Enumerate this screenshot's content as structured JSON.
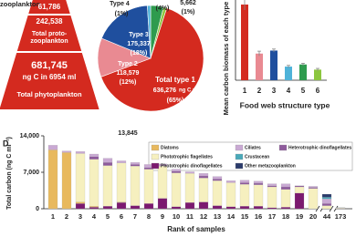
{
  "pyramid": {
    "heading": "zooplankton",
    "levels": [
      {
        "amount": "61,786"
      },
      {
        "amount": "242,538",
        "name": "Total proto-zooplankton"
      },
      {
        "amount": "681,745",
        "unit": "ng C in 6954 ml",
        "name": "Total phytoplankton"
      }
    ]
  },
  "chart_data": [
    {
      "type": "pie",
      "categories": [
        null,
        null,
        "Total type 1",
        "Type 2",
        "Type 3",
        "Type 4"
      ],
      "values": [
        4,
        1,
        65,
        12,
        18,
        1
      ],
      "value_labels": [
        "(4%)",
        "(1%)",
        "(65%)",
        "(12%)",
        "(18%)",
        "(1%)"
      ],
      "carbon": [
        null,
        5662,
        636276,
        118579,
        175337,
        13845
      ],
      "carbon_labels": [
        null,
        "5,662",
        "636,276",
        "118,579",
        "175,337",
        "13,845"
      ],
      "unit": "ng C ml⁻¹",
      "colors": [
        "#2e9b4e",
        "#8cc63f",
        "#d42a1f",
        "#e98a92",
        "#1f4f9e",
        "#4fb3d9"
      ]
    },
    {
      "type": "bar",
      "ylabel": "Mean carbon biomass of each type (ng C ml",
      "xlabel": "Food web structure type",
      "categories": [
        "1",
        "2",
        "3",
        "4",
        "5",
        "6"
      ],
      "values": [
        250,
        88,
        98,
        45,
        52,
        35
      ],
      "errors": [
        18,
        8,
        5,
        4,
        4,
        4
      ],
      "colors": [
        "#d42a1f",
        "#e98a92",
        "#1f4f9e",
        "#4fb3d9",
        "#2e9b4e",
        "#8cc63f"
      ],
      "ylim": [
        0,
        265
      ]
    },
    {
      "type": "stacked_bar",
      "panel_label": "D",
      "ylabel": "Total carbon (ng C ml⁻¹)",
      "xlabel": "Rank of samples",
      "categories": [
        "1",
        "2",
        "3",
        "4",
        "5",
        "6",
        "7",
        "8",
        "9",
        "10",
        "11",
        "12",
        "13",
        "14",
        "15",
        "16",
        "17",
        "18",
        "19",
        "20",
        "44",
        "173"
      ],
      "series": [
        {
          "name": "Diatoms",
          "color": "#e8b95e",
          "values": [
            11300,
            10800,
            300,
            200,
            0,
            100,
            0,
            0,
            0,
            0,
            0,
            0,
            0,
            0,
            0,
            0,
            0,
            0,
            0,
            0,
            0,
            0
          ]
        },
        {
          "name": "Phototrophic flagellates",
          "color": "#f6f0bf",
          "values": [
            0,
            0,
            9300,
            9000,
            7800,
            7500,
            7600,
            6600,
            6200,
            6500,
            5600,
            4600,
            4800,
            4600,
            4200,
            4100,
            4000,
            3400,
            1200,
            3900,
            600,
            100
          ]
        },
        {
          "name": "Phototrophic dinoflagellates",
          "color": "#7b1a70",
          "values": [
            0,
            0,
            1000,
            300,
            500,
            1200,
            600,
            1000,
            2000,
            400,
            1200,
            1300,
            600,
            400,
            500,
            500,
            200,
            300,
            3000,
            0,
            0,
            0
          ]
        },
        {
          "name": "Ciliates",
          "color": "#c9a9d3",
          "values": [
            900,
            300,
            400,
            500,
            800,
            400,
            400,
            600,
            400,
            400,
            300,
            500,
            500,
            400,
            500,
            400,
            400,
            600,
            0,
            200,
            900,
            50
          ]
        },
        {
          "name": "Crustacean",
          "color": "#4aa9b9",
          "values": [
            0,
            0,
            0,
            0,
            0,
            0,
            0,
            0,
            0,
            0,
            0,
            0,
            0,
            0,
            0,
            0,
            0,
            0,
            0,
            0,
            300,
            20
          ]
        },
        {
          "name": "Other metazooplankton",
          "color": "#2b3b6b",
          "values": [
            0,
            0,
            0,
            0,
            0,
            0,
            0,
            0,
            0,
            0,
            0,
            0,
            0,
            0,
            0,
            0,
            0,
            0,
            0,
            0,
            600,
            0
          ]
        },
        {
          "name": "Heterotrophic dinoflagellates",
          "color": "#8e5a9c",
          "values": [
            0,
            0,
            0,
            500,
            600,
            0,
            300,
            300,
            0,
            300,
            0,
            400,
            300,
            0,
            300,
            300,
            200,
            500,
            200,
            200,
            400,
            30
          ]
        }
      ],
      "ylim": [
        0,
        14000
      ],
      "yticks": [
        0,
        {
          "value": 7000,
          "label": "7,000"
        },
        {
          "value": 14000,
          "label": "14,000"
        }
      ],
      "legend": "top-right"
    }
  ]
}
